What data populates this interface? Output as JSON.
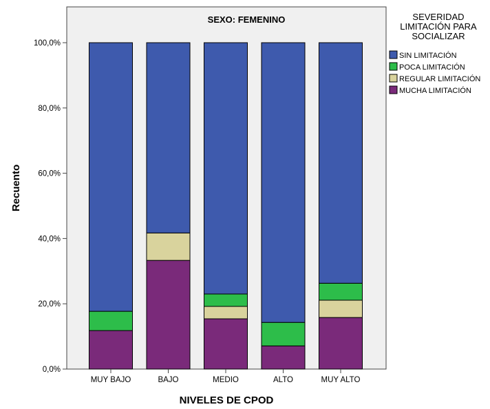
{
  "chart_data": {
    "type": "bar",
    "stacked": true,
    "title": "SEXO: FEMENINO",
    "xlabel": "NIVELES DE CPOD",
    "ylabel": "Recuento",
    "ylim": [
      0,
      100
    ],
    "y_ticks": [
      "0,0%",
      "20,0%",
      "40,0%",
      "60,0%",
      "80,0%",
      "100,0%"
    ],
    "y_tick_values": [
      0,
      20,
      40,
      60,
      80,
      100
    ],
    "categories": [
      "MUY BAJO",
      "BAJO",
      "MEDIO",
      "ALTO",
      "MUY ALTO"
    ],
    "legend": {
      "title_lines": [
        "SEVERIDAD",
        "LIMITACIÓN PARA",
        "SOCIALIZAR"
      ],
      "placement": "right"
    },
    "series": [
      {
        "name": "MUCHA LIMITACIÓN",
        "color": "#7a2a7a",
        "values": [
          11.8,
          33.3,
          15.4,
          7.1,
          15.8
        ]
      },
      {
        "name": "REGULAR LIMITACIÓN",
        "color": "#d9d39d",
        "values": [
          0.0,
          8.4,
          3.8,
          0.0,
          5.3
        ]
      },
      {
        "name": "POCA LIMITACIÓN",
        "color": "#2dbd4a",
        "values": [
          5.9,
          0.0,
          3.8,
          7.2,
          5.2
        ]
      },
      {
        "name": "SIN LIMITACIÓN",
        "color": "#3e5aad",
        "values": [
          82.3,
          58.3,
          77.0,
          85.7,
          73.7
        ]
      }
    ],
    "legend_order": [
      "SIN LIMITACIÓN",
      "POCA LIMITACIÓN",
      "REGULAR LIMITACIÓN",
      "MUCHA LIMITACIÓN"
    ],
    "plot_background": "#f0f0f0",
    "grid": false
  }
}
